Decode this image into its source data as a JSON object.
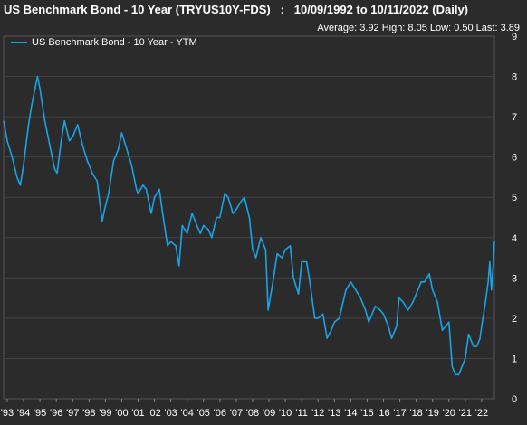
{
  "chart_data": {
    "type": "line",
    "title": "US Benchmark Bond - 10 Year (TRYUS10Y-FDS)   :   10/09/1992 to 10/11/2022 (Daily)",
    "stats": {
      "average": "Average: 3.92",
      "high": "High: 8.05",
      "low": "Low: 0.50",
      "last": "Last: 3.89"
    },
    "xlabel": "",
    "ylabel": "",
    "ylim": [
      0,
      9
    ],
    "xlim": [
      1992.78,
      2022.78
    ],
    "yticks": [
      0,
      1,
      2,
      3,
      4,
      5,
      6,
      7,
      8,
      9
    ],
    "xticks": [
      {
        "label": "'93",
        "x": 1993.0
      },
      {
        "label": "'94",
        "x": 1994.0
      },
      {
        "label": "'95",
        "x": 1995.0
      },
      {
        "label": "'96",
        "x": 1996.0
      },
      {
        "label": "'97",
        "x": 1997.0
      },
      {
        "label": "'98",
        "x": 1998.0
      },
      {
        "label": "'99",
        "x": 1999.0
      },
      {
        "label": "'00",
        "x": 2000.0
      },
      {
        "label": "'01",
        "x": 2001.0
      },
      {
        "label": "'02",
        "x": 2002.0
      },
      {
        "label": "'03",
        "x": 2003.0
      },
      {
        "label": "'04",
        "x": 2004.0
      },
      {
        "label": "'05",
        "x": 2005.0
      },
      {
        "label": "'06",
        "x": 2006.0
      },
      {
        "label": "'07",
        "x": 2007.0
      },
      {
        "label": "'08",
        "x": 2008.0
      },
      {
        "label": "'09",
        "x": 2009.0
      },
      {
        "label": "'10",
        "x": 2010.0
      },
      {
        "label": "'11",
        "x": 2011.0
      },
      {
        "label": "'12",
        "x": 2012.0
      },
      {
        "label": "'13",
        "x": 2013.0
      },
      {
        "label": "'14",
        "x": 2014.0
      },
      {
        "label": "'15",
        "x": 2015.0
      },
      {
        "label": "'16",
        "x": 2016.0
      },
      {
        "label": "'17",
        "x": 2017.0
      },
      {
        "label": "'18",
        "x": 2018.0
      },
      {
        "label": "'19",
        "x": 2019.0
      },
      {
        "label": "'20",
        "x": 2020.0
      },
      {
        "label": "'21",
        "x": 2021.0
      },
      {
        "label": "'22",
        "x": 2022.0
      }
    ],
    "grid": true,
    "legend_position": "top-left",
    "series": [
      {
        "name": "US Benchmark Bond - 10 Year - YTM",
        "color": "#1aa3e8",
        "x": [
          1992.78,
          1993.0,
          1993.3,
          1993.6,
          1993.8,
          1994.0,
          1994.3,
          1994.5,
          1994.85,
          1995.0,
          1995.3,
          1995.6,
          1995.9,
          1996.05,
          1996.3,
          1996.5,
          1996.8,
          1997.0,
          1997.3,
          1997.6,
          1997.9,
          1998.2,
          1998.5,
          1998.8,
          1998.95,
          1999.2,
          1999.5,
          1999.8,
          2000.0,
          2000.3,
          2000.6,
          2000.9,
          2001.0,
          2001.3,
          2001.5,
          2001.8,
          2002.0,
          2002.3,
          2002.5,
          2002.8,
          2003.0,
          2003.3,
          2003.5,
          2003.7,
          2004.0,
          2004.3,
          2004.5,
          2004.8,
          2005.0,
          2005.3,
          2005.5,
          2005.8,
          2006.0,
          2006.3,
          2006.5,
          2006.8,
          2007.0,
          2007.3,
          2007.5,
          2007.8,
          2008.0,
          2008.2,
          2008.5,
          2008.8,
          2008.95,
          2009.2,
          2009.5,
          2009.8,
          2010.0,
          2010.3,
          2010.5,
          2010.8,
          2011.0,
          2011.3,
          2011.5,
          2011.8,
          2012.0,
          2012.3,
          2012.55,
          2012.8,
          2013.0,
          2013.3,
          2013.7,
          2014.0,
          2014.3,
          2014.6,
          2014.9,
          2015.1,
          2015.5,
          2015.8,
          2016.0,
          2016.3,
          2016.5,
          2016.8,
          2016.95,
          2017.2,
          2017.5,
          2017.8,
          2018.0,
          2018.3,
          2018.5,
          2018.8,
          2019.0,
          2019.3,
          2019.6,
          2019.8,
          2020.0,
          2020.2,
          2020.4,
          2020.6,
          2020.9,
          2021.0,
          2021.2,
          2021.5,
          2021.7,
          2021.9,
          2022.0,
          2022.2,
          2022.4,
          2022.5,
          2022.6,
          2022.7,
          2022.78
        ],
        "values": [
          6.9,
          6.4,
          6.0,
          5.5,
          5.3,
          5.8,
          6.8,
          7.3,
          8.0,
          7.7,
          6.9,
          6.3,
          5.7,
          5.6,
          6.4,
          6.9,
          6.4,
          6.5,
          6.8,
          6.3,
          5.9,
          5.6,
          5.4,
          4.4,
          4.7,
          5.1,
          5.9,
          6.2,
          6.6,
          6.2,
          5.8,
          5.2,
          5.1,
          5.3,
          5.2,
          4.6,
          5.0,
          5.2,
          4.6,
          3.8,
          3.9,
          3.8,
          3.3,
          4.3,
          4.1,
          4.6,
          4.4,
          4.1,
          4.3,
          4.2,
          4.0,
          4.5,
          4.5,
          5.1,
          5.0,
          4.6,
          4.7,
          4.9,
          5.0,
          4.5,
          3.7,
          3.5,
          4.0,
          3.7,
          2.2,
          2.8,
          3.6,
          3.5,
          3.7,
          3.8,
          3.0,
          2.6,
          3.4,
          3.4,
          2.9,
          2.0,
          2.0,
          2.1,
          1.5,
          1.7,
          1.9,
          2.0,
          2.7,
          2.9,
          2.7,
          2.5,
          2.2,
          1.9,
          2.3,
          2.2,
          2.1,
          1.8,
          1.5,
          1.8,
          2.5,
          2.4,
          2.2,
          2.4,
          2.6,
          2.9,
          2.9,
          3.1,
          2.7,
          2.4,
          1.7,
          1.8,
          1.9,
          0.8,
          0.6,
          0.6,
          0.9,
          1.0,
          1.6,
          1.3,
          1.3,
          1.5,
          1.8,
          2.3,
          2.9,
          3.4,
          2.7,
          3.3,
          3.9
        ]
      }
    ]
  }
}
